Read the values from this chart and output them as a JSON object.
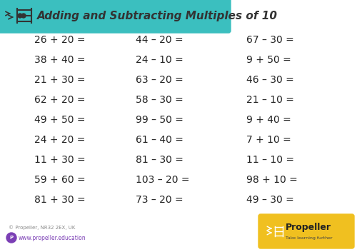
{
  "title": "Adding and Subtracting Multiples of 10",
  "bg_color": "#ffffff",
  "header_color": "#3bbfbf",
  "header_text_color": "#333333",
  "text_color": "#222222",
  "col1": [
    "26 + 20 =",
    "38 + 40 =",
    "21 + 30 =",
    "62 + 20 =",
    "49 + 50 =",
    "24 + 20 =",
    "11 + 30 =",
    "59 + 60 =",
    "81 + 30 ="
  ],
  "col2": [
    "44 – 20 =",
    "24 – 10 =",
    "63 – 20 =",
    "58 – 30 =",
    "99 – 50 =",
    "61 – 40 =",
    "81 – 30 =",
    "103 – 20 =",
    "73 – 20 ="
  ],
  "col3": [
    "67 – 30 =",
    "9 + 50 =",
    "46 – 30 =",
    "21 – 10 =",
    "9 + 40 =",
    "7 + 10 =",
    "11 – 10 =",
    "98 + 10 =",
    "49 – 30 ="
  ],
  "footer_copyright": "© Propeller, NR32 2EX, UK",
  "footer_url": "www.propeller.education",
  "logo_text": "Propeller",
  "logo_tagline": "Take learning further",
  "logo_bg": "#f0c020",
  "url_color": "#7b3fb5",
  "footer_text_color": "#888888"
}
